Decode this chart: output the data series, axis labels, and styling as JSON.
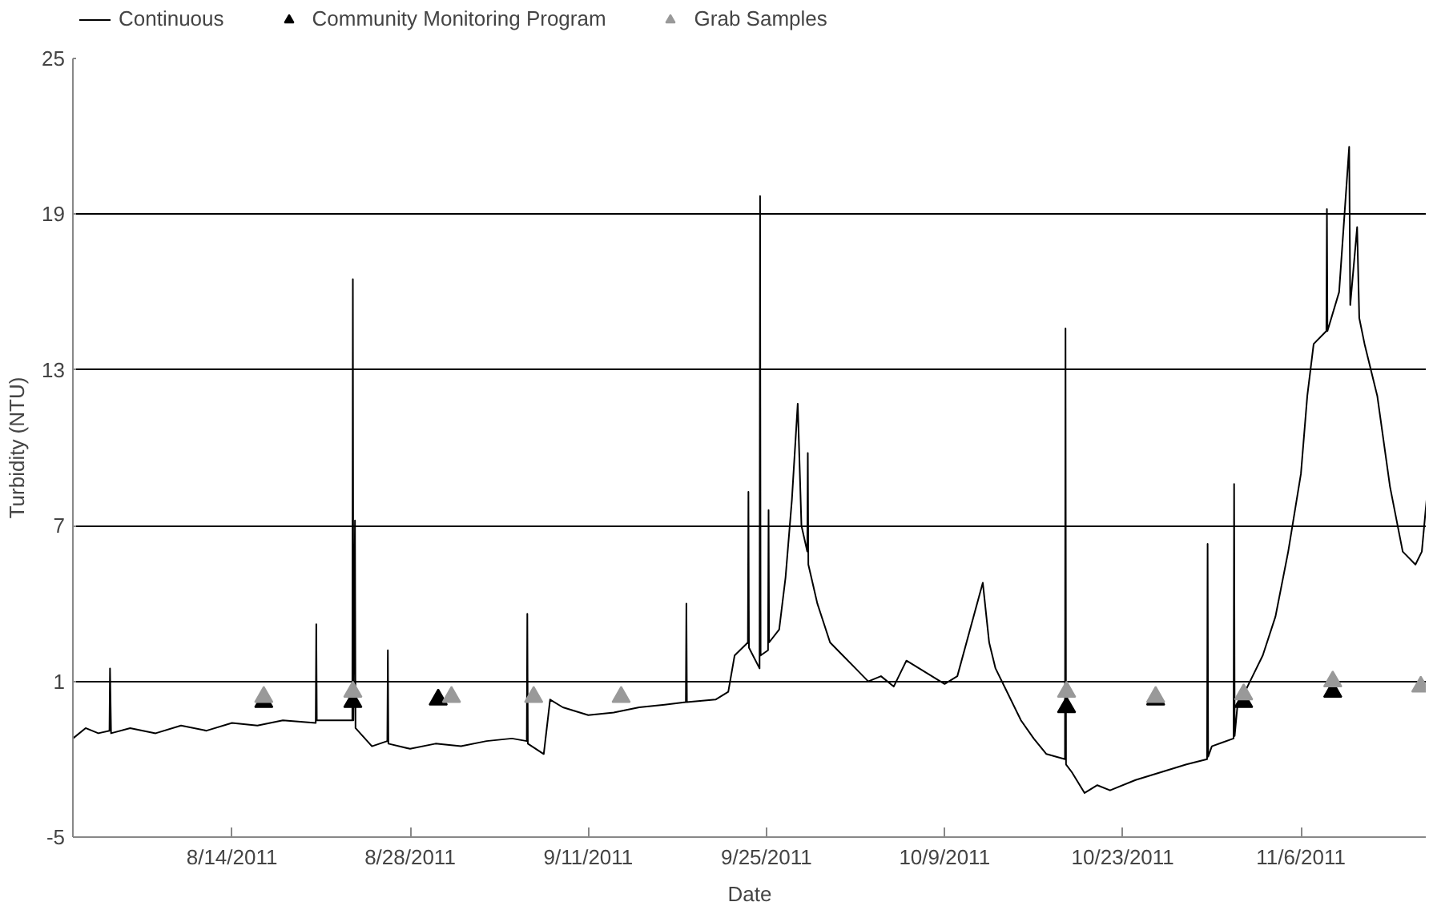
{
  "chart_data": {
    "type": "line",
    "xlabel": "Date",
    "ylabel": "Turbidity (NTU)",
    "xlim": [
      "2011-08-01T12:00",
      "2011-11-15T21:00"
    ],
    "ylim": [
      -5,
      25
    ],
    "yticks": [
      -5,
      1,
      7,
      13,
      19,
      25
    ],
    "xticks": [
      {
        "value": "2011-08-14",
        "label": "8/14/2011"
      },
      {
        "value": "2011-08-28",
        "label": "8/28/2011"
      },
      {
        "value": "2011-09-11",
        "label": "9/11/2011"
      },
      {
        "value": "2011-09-25",
        "label": "9/25/2011"
      },
      {
        "value": "2011-10-09",
        "label": "10/9/2011"
      },
      {
        "value": "2011-10-23",
        "label": "10/23/2011"
      },
      {
        "value": "2011-11-06",
        "label": "11/6/2011"
      }
    ],
    "grid": "y",
    "legend": "top",
    "series": [
      {
        "name": "Continuous",
        "type": "line",
        "color": "#000000",
        "marker": "none",
        "line_style": "solid",
        "x": [
          "2011-08-01T12:00",
          "2011-08-02T12:00",
          "2011-08-03T12:00",
          "2011-08-04T09:00",
          "2011-08-04T10:00",
          "2011-08-04T12:00",
          "2011-08-06",
          "2011-08-08",
          "2011-08-10",
          "2011-08-12",
          "2011-08-14",
          "2011-08-16",
          "2011-08-18",
          "2011-08-20T14:00",
          "2011-08-20T15:00",
          "2011-08-20T16:00",
          "2011-08-22",
          "2011-08-23T11:00",
          "2011-08-23T12:00",
          "2011-08-23T13:00",
          "2011-08-23T16:00",
          "2011-08-23T17:00",
          "2011-08-25",
          "2011-08-26T05:00",
          "2011-08-26T06:00",
          "2011-08-26T07:00",
          "2011-08-28",
          "2011-08-30",
          "2011-09-01",
          "2011-09-03",
          "2011-09-05",
          "2011-09-06T04:00",
          "2011-09-06T05:00",
          "2011-09-06T06:00",
          "2011-09-07T12:00",
          "2011-09-08",
          "2011-09-09",
          "2011-09-11",
          "2011-09-13",
          "2011-09-15",
          "2011-09-17",
          "2011-09-18T16:00",
          "2011-09-18T17:00",
          "2011-09-18T18:00",
          "2011-09-21",
          "2011-09-22",
          "2011-09-22T12:00",
          "2011-09-23T13:00",
          "2011-09-23T14:00",
          "2011-09-23T15:00",
          "2011-09-24T11:00",
          "2011-09-24T12:00",
          "2011-09-24T13:00",
          "2011-09-25T03:00",
          "2011-09-25T04:00",
          "2011-09-25T05:00",
          "2011-09-26",
          "2011-09-26T12:00",
          "2011-09-27",
          "2011-09-27T11:00",
          "2011-09-27T18:00",
          "2011-09-28T05:00",
          "2011-09-28T06:00",
          "2011-09-28T07:00",
          "2011-09-29",
          "2011-09-30",
          "2011-10-01",
          "2011-10-02",
          "2011-10-03",
          "2011-10-04",
          "2011-10-05",
          "2011-10-06",
          "2011-10-07",
          "2011-10-08",
          "2011-10-09",
          "2011-10-10",
          "2011-10-11",
          "2011-10-12",
          "2011-10-12T12:00",
          "2011-10-13",
          "2011-10-14",
          "2011-10-15",
          "2011-10-16",
          "2011-10-17",
          "2011-10-18T11:00",
          "2011-10-18T12:00",
          "2011-10-18T13:00",
          "2011-10-19",
          "2011-10-20",
          "2011-10-21",
          "2011-10-22",
          "2011-10-24",
          "2011-10-26",
          "2011-10-28",
          "2011-10-29T15:00",
          "2011-10-29T16:00",
          "2011-10-29T17:00",
          "2011-10-30",
          "2011-10-31T17:00",
          "2011-10-31T18:00",
          "2011-10-31T19:00",
          "2011-11-01",
          "2011-11-02",
          "2011-11-03",
          "2011-11-04",
          "2011-11-05",
          "2011-11-06",
          "2011-11-06T12:00",
          "2011-11-07",
          "2011-11-08",
          "2011-11-08T01:00",
          "2011-11-08T02:00",
          "2011-11-09",
          "2011-11-09T19:00",
          "2011-11-09T21:00",
          "2011-11-10T10:00",
          "2011-11-10T14:00",
          "2011-11-11",
          "2011-11-12",
          "2011-11-13",
          "2011-11-14",
          "2011-11-15",
          "2011-11-15T12:00",
          "2011-11-15T21:00"
        ],
        "values": [
          -1.2,
          -0.8,
          -1.0,
          -0.9,
          1.5,
          -1.0,
          -0.8,
          -1.0,
          -0.7,
          -0.9,
          -0.6,
          -0.7,
          -0.5,
          -0.6,
          3.2,
          -0.5,
          -0.5,
          -0.5,
          16.5,
          -0.5,
          7.2,
          -0.8,
          -1.5,
          -1.3,
          2.2,
          -1.4,
          -1.6,
          -1.4,
          -1.5,
          -1.3,
          -1.2,
          -1.3,
          3.6,
          -1.4,
          -1.8,
          0.3,
          0.0,
          -0.3,
          -0.2,
          0.0,
          0.1,
          0.2,
          4.0,
          0.2,
          0.3,
          0.6,
          2.0,
          2.5,
          8.3,
          2.3,
          1.5,
          19.7,
          2.0,
          2.2,
          7.6,
          2.5,
          3.0,
          5.0,
          8.0,
          11.7,
          7.0,
          6.0,
          9.8,
          5.5,
          4.0,
          2.5,
          2.0,
          1.5,
          1.0,
          1.2,
          0.8,
          1.8,
          1.5,
          1.2,
          0.9,
          1.2,
          3.0,
          4.8,
          2.5,
          1.5,
          0.5,
          -0.5,
          -1.2,
          -1.8,
          -2.0,
          14.6,
          -2.2,
          -2.5,
          -3.3,
          -3.0,
          -3.2,
          -2.8,
          -2.5,
          -2.2,
          -2.0,
          6.3,
          -1.9,
          -1.5,
          -1.2,
          8.6,
          -1.1,
          0.0,
          1.0,
          2.0,
          3.5,
          6.0,
          9.0,
          12.0,
          14.0,
          14.5,
          19.2,
          14.5,
          16.0,
          21.6,
          15.5,
          18.5,
          15.0,
          14.0,
          12.0,
          8.5,
          6.0,
          5.5,
          6.0,
          8.0
        ]
      },
      {
        "name": "Community Monitoring Program",
        "type": "scatter",
        "color": "#000000",
        "marker": "triangle",
        "x": [
          "2011-08-16T12:00",
          "2011-08-23T12:00",
          "2011-08-30T05:00",
          "2011-10-18T14:00",
          "2011-10-25T14:00",
          "2011-11-01T12:00",
          "2011-11-08T12:00"
        ],
        "values": [
          0.2,
          0.2,
          0.3,
          0.0,
          0.3,
          0.2,
          0.6
        ]
      },
      {
        "name": "Grab Samples",
        "type": "scatter",
        "color": "#999999",
        "marker": "triangle",
        "x": [
          "2011-08-16T12:00",
          "2011-08-23T12:00",
          "2011-08-31T06:00",
          "2011-09-06T17:00",
          "2011-09-13T14:00",
          "2011-10-18T14:00",
          "2011-10-25T14:00",
          "2011-11-01T12:00",
          "2011-11-08T12:00",
          "2011-11-15T10:00"
        ],
        "values": [
          0.4,
          0.6,
          0.4,
          0.4,
          0.4,
          0.6,
          0.4,
          0.5,
          1.0,
          0.8
        ]
      }
    ]
  }
}
